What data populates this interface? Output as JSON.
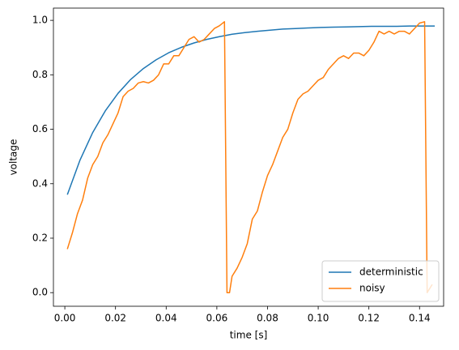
{
  "chart_data": {
    "type": "line",
    "xlabel": "time [s]",
    "ylabel": "voltage",
    "xlim": [
      -0.0045,
      0.1495
    ],
    "ylim": [
      -0.05,
      1.045
    ],
    "xticks": [
      {
        "value": 0,
        "label": "0.00"
      },
      {
        "value": 0.02,
        "label": "0.02"
      },
      {
        "value": 0.04,
        "label": "0.04"
      },
      {
        "value": 0.06,
        "label": "0.06"
      },
      {
        "value": 0.08,
        "label": "0.08"
      },
      {
        "value": 0.1,
        "label": "0.10"
      },
      {
        "value": 0.12,
        "label": "0.12"
      },
      {
        "value": 0.14,
        "label": "0.14"
      }
    ],
    "yticks": [
      {
        "value": 0,
        "label": "0.0"
      },
      {
        "value": 0.2,
        "label": "0.2"
      },
      {
        "value": 0.4,
        "label": "0.4"
      },
      {
        "value": 0.6,
        "label": "0.6"
      },
      {
        "value": 0.8,
        "label": "0.8"
      },
      {
        "value": 1,
        "label": "1.0"
      }
    ],
    "legend_position": "lower right",
    "series": [
      {
        "name": "deterministic",
        "color": "#1f77b4",
        "x": [
          0.001,
          0.006,
          0.011,
          0.016,
          0.021,
          0.026,
          0.031,
          0.036,
          0.041,
          0.046,
          0.051,
          0.056,
          0.061,
          0.066,
          0.071,
          0.076,
          0.081,
          0.086,
          0.091,
          0.096,
          0.101,
          0.106,
          0.111,
          0.116,
          0.121,
          0.126,
          0.131,
          0.136,
          0.141,
          0.146
        ],
        "values": [
          0.36,
          0.487,
          0.588,
          0.668,
          0.732,
          0.783,
          0.823,
          0.855,
          0.881,
          0.901,
          0.917,
          0.93,
          0.94,
          0.949,
          0.955,
          0.96,
          0.964,
          0.968,
          0.97,
          0.972,
          0.974,
          0.975,
          0.976,
          0.977,
          0.978,
          0.978,
          0.978,
          0.979,
          0.979,
          0.979
        ]
      },
      {
        "name": "noisy",
        "color": "#ff7f0e",
        "x": [
          0.001,
          0.003,
          0.005,
          0.007,
          0.009,
          0.011,
          0.013,
          0.015,
          0.017,
          0.019,
          0.021,
          0.023,
          0.025,
          0.027,
          0.029,
          0.031,
          0.033,
          0.035,
          0.037,
          0.039,
          0.041,
          0.043,
          0.045,
          0.047,
          0.049,
          0.051,
          0.053,
          0.055,
          0.057,
          0.059,
          0.061,
          0.063,
          0.064,
          0.065,
          0.066,
          0.068,
          0.07,
          0.072,
          0.074,
          0.076,
          0.078,
          0.08,
          0.082,
          0.084,
          0.086,
          0.088,
          0.09,
          0.092,
          0.094,
          0.096,
          0.098,
          0.1,
          0.102,
          0.104,
          0.106,
          0.108,
          0.11,
          0.112,
          0.114,
          0.116,
          0.118,
          0.12,
          0.122,
          0.124,
          0.126,
          0.128,
          0.13,
          0.132,
          0.134,
          0.136,
          0.138,
          0.14,
          0.142,
          0.143,
          0.145
        ],
        "values": [
          0.16,
          0.22,
          0.29,
          0.34,
          0.42,
          0.47,
          0.5,
          0.55,
          0.58,
          0.62,
          0.66,
          0.72,
          0.74,
          0.75,
          0.77,
          0.775,
          0.77,
          0.78,
          0.8,
          0.84,
          0.84,
          0.87,
          0.87,
          0.9,
          0.93,
          0.94,
          0.92,
          0.93,
          0.95,
          0.97,
          0.98,
          0.995,
          0,
          0,
          0.06,
          0.09,
          0.13,
          0.18,
          0.27,
          0.3,
          0.37,
          0.43,
          0.47,
          0.52,
          0.57,
          0.6,
          0.66,
          0.71,
          0.73,
          0.74,
          0.76,
          0.78,
          0.79,
          0.82,
          0.84,
          0.86,
          0.87,
          0.86,
          0.88,
          0.88,
          0.87,
          0.89,
          0.92,
          0.96,
          0.95,
          0.96,
          0.95,
          0.96,
          0.96,
          0.95,
          0.97,
          0.99,
          0.995,
          0,
          0.03
        ]
      }
    ]
  }
}
